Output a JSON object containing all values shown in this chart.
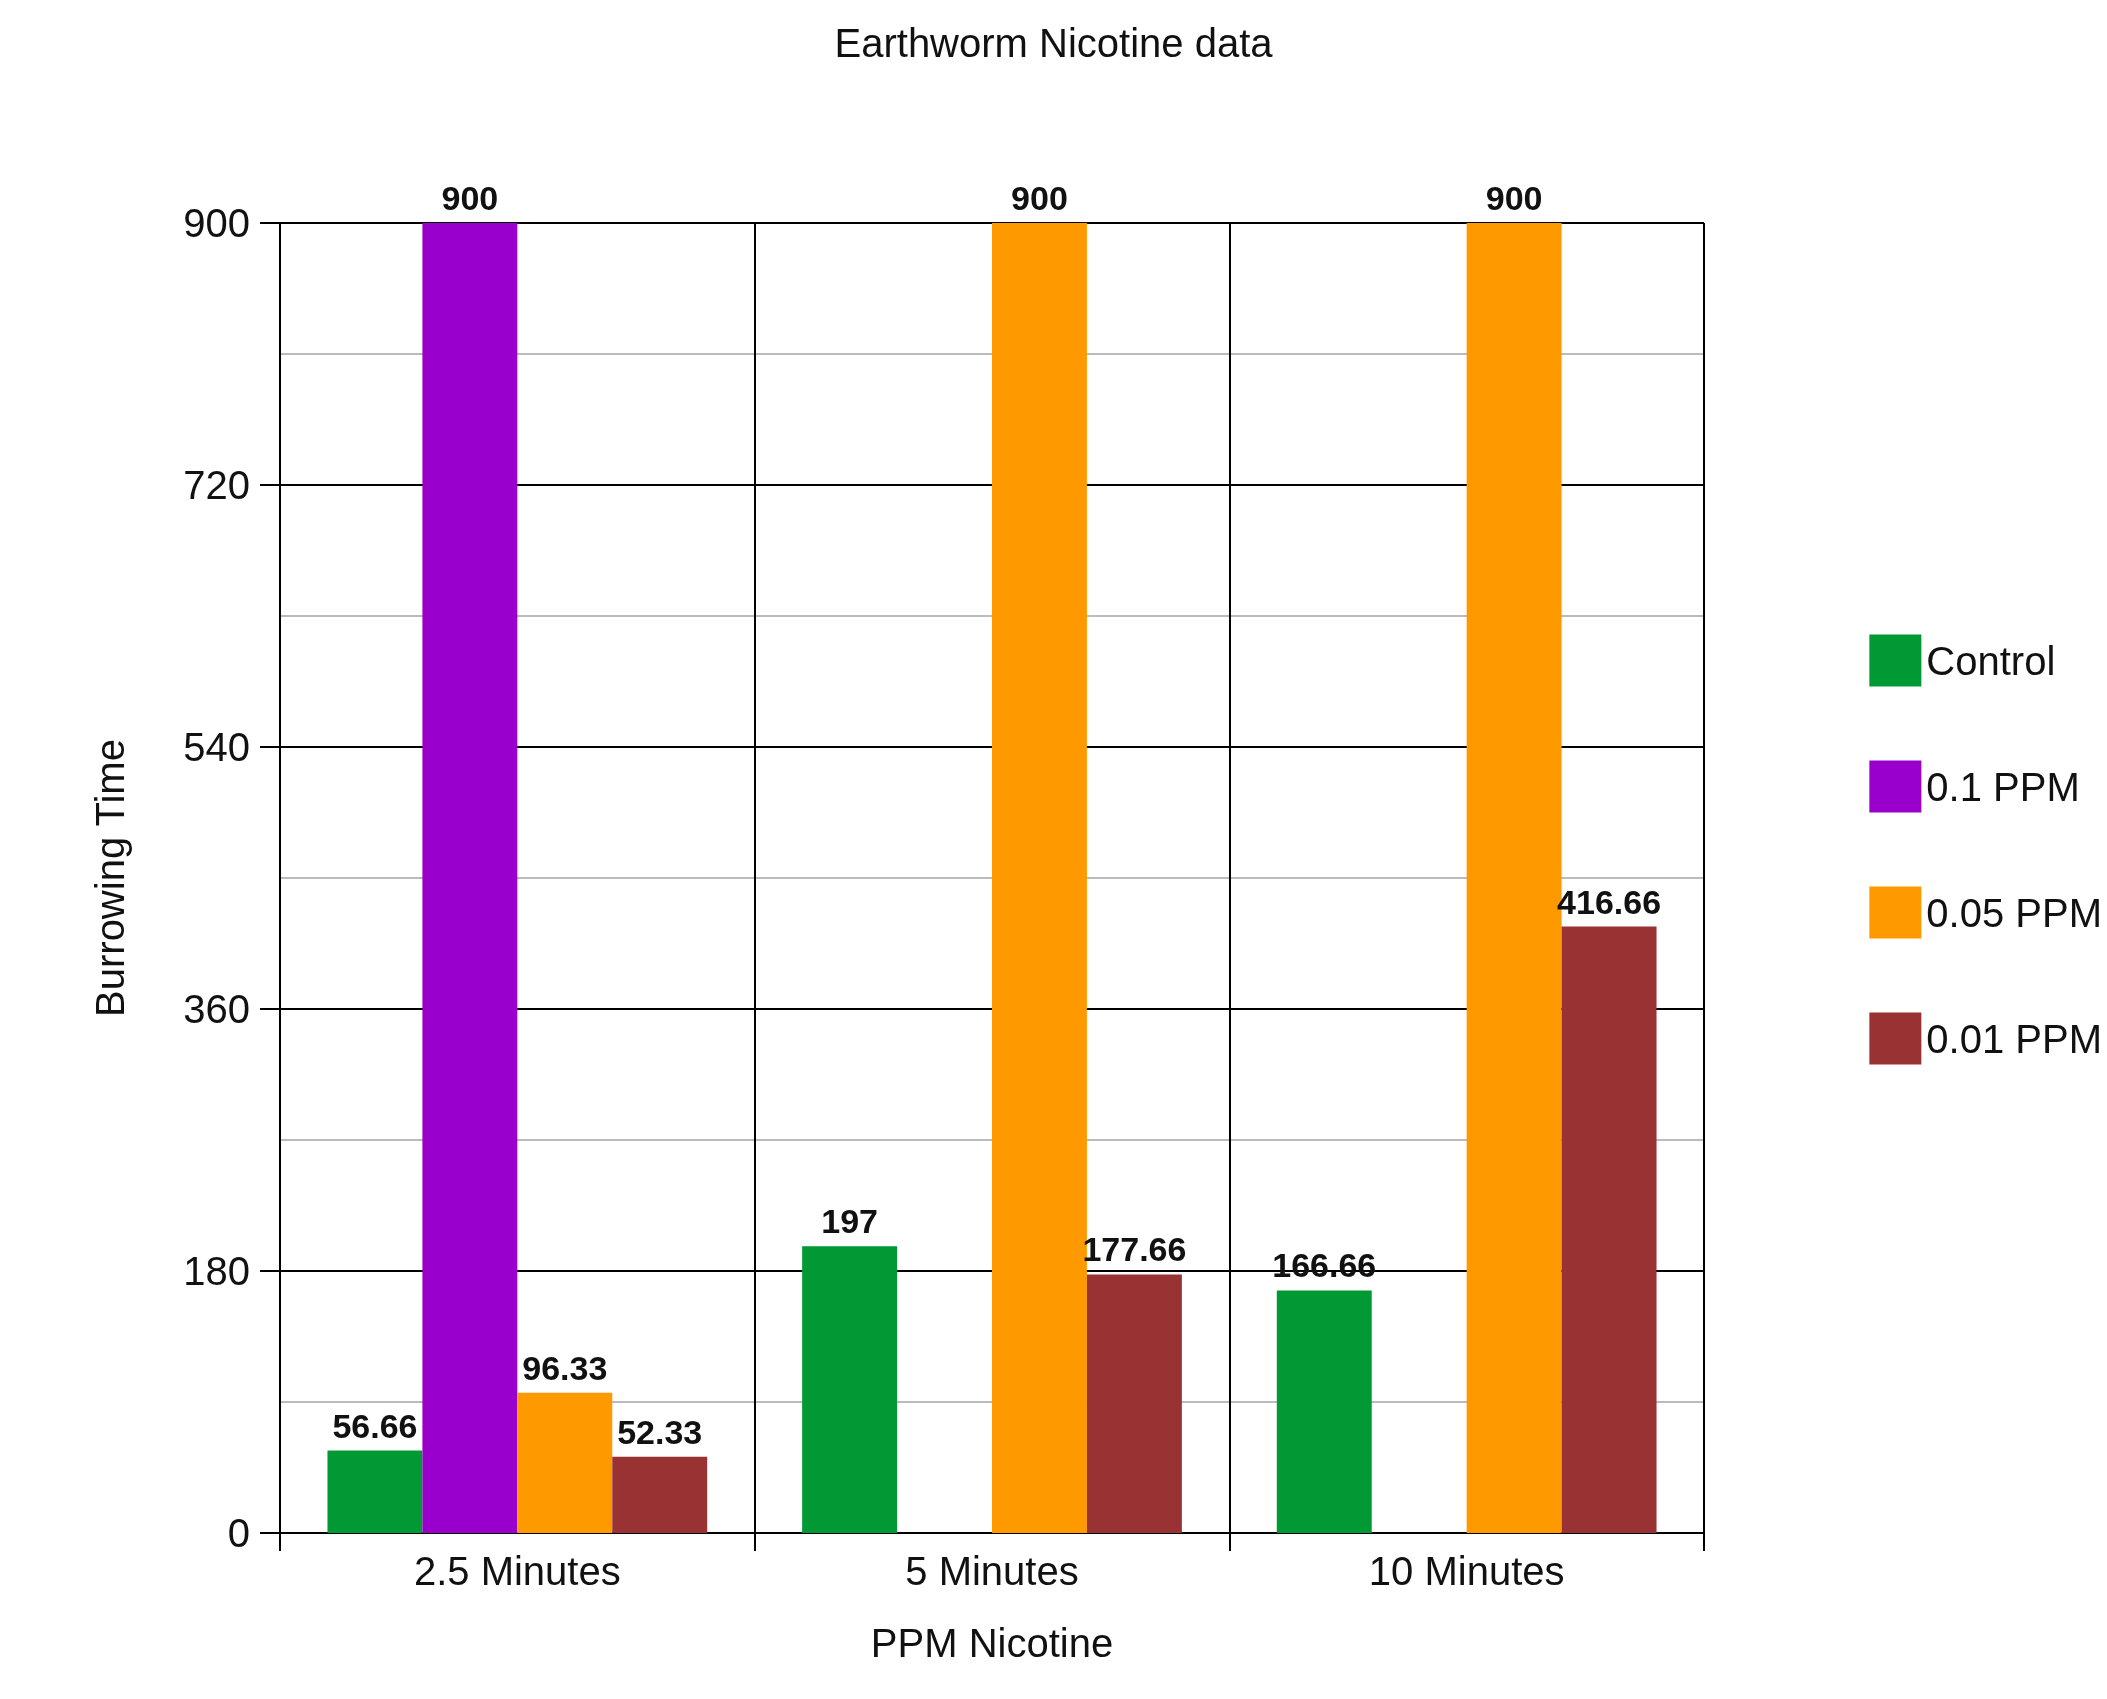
{
  "chart_data": {
    "type": "bar",
    "title": "Earthworm Nicotine data",
    "xlabel": "PPM Nicotine",
    "ylabel": "Burrowing Time",
    "categories": [
      "2.5 Minutes",
      "5 Minutes",
      "10 Minutes"
    ],
    "series": [
      {
        "name": "Control",
        "color": "#009933",
        "values": [
          56.66,
          197,
          166.66
        ]
      },
      {
        "name": "0.1 PPM",
        "color": "#9900cc",
        "values": [
          900,
          null,
          null
        ]
      },
      {
        "name": "0.05 PPM",
        "color": "#ff9900",
        "values": [
          96.33,
          900,
          900
        ]
      },
      {
        "name": "0.01 PPM",
        "color": "#993333",
        "values": [
          52.33,
          177.66,
          416.66
        ]
      }
    ],
    "ylim": [
      0,
      900
    ],
    "yticks": [
      0,
      180,
      360,
      540,
      720,
      900
    ],
    "grid": true,
    "legend": "right",
    "data_labels": true
  }
}
